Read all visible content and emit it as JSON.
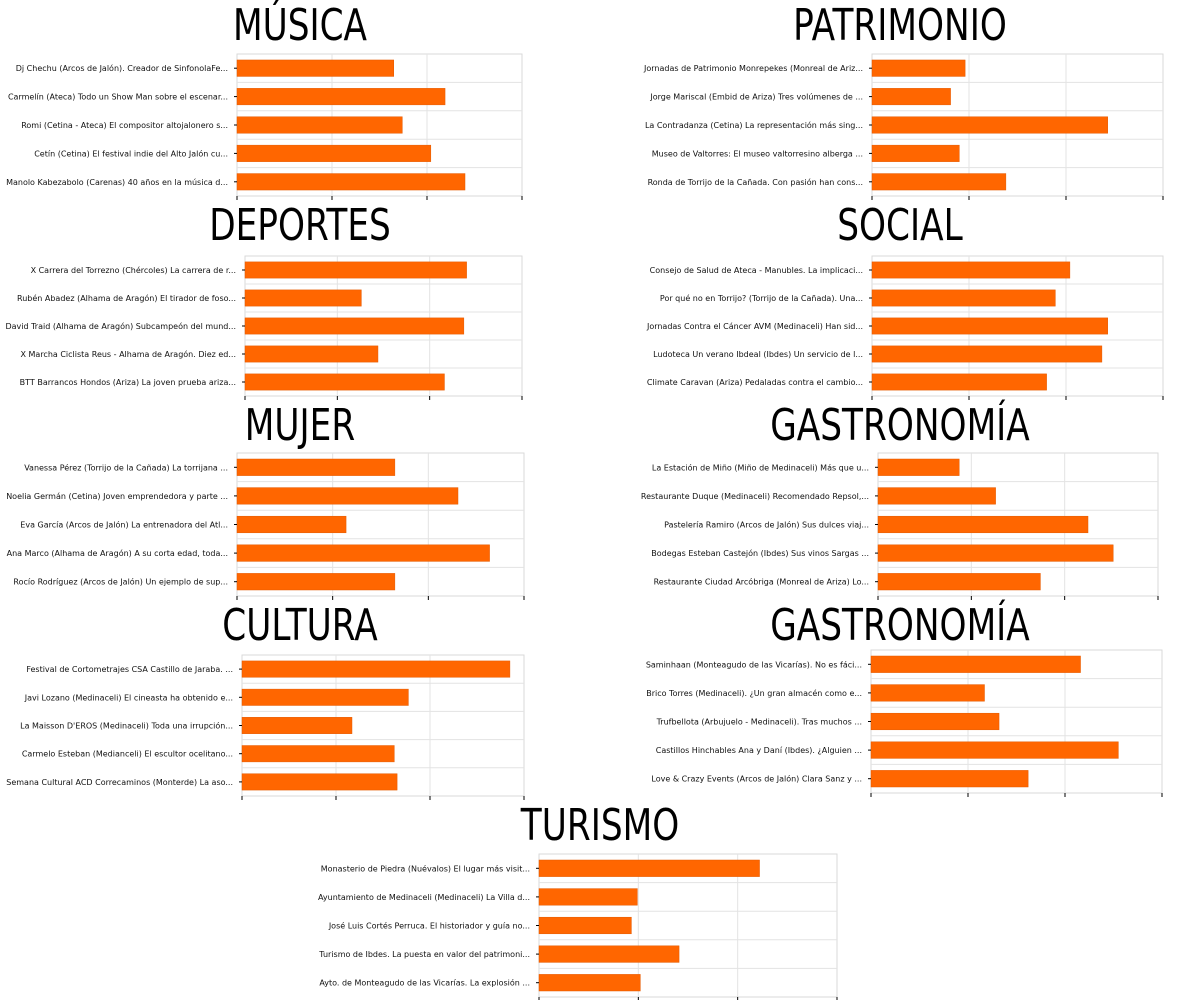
{
  "accent_color": "#ff6600",
  "chart_data": [
    {
      "type": "bar",
      "title": "MÚSICA",
      "categories": [
        "Dj Chechu (Arcos de Jalón). Creador de SinfonolaFe...",
        "Carmelín (Ateca) Todo un Show Man sobre el escenar...",
        "Romi (Cetina - Ateca) El compositor altojalonero s...",
        "Cetín (Cetina) El festival indie del Alto Jalón cu...",
        "Manolo Kabezabolo (Carenas) 40 años en la música d..."
      ],
      "values": [
        55,
        73,
        58,
        68,
        80
      ],
      "xlim": [
        0,
        100
      ]
    },
    {
      "type": "bar",
      "title": "PATRIMONIO",
      "categories": [
        "Jornadas de Patrimonio Monrepekes (Monreal de Ariz...",
        "Jorge Mariscal (Embid de Ariza) Tres volúmenes de ...",
        "La Contradanza (Cetina) La representación más sing...",
        "Museo de Valtorres: El museo valtorresino alberga ...",
        "Ronda de Torrijo de la Cañada. Con pasión han cons..."
      ],
      "values": [
        32,
        27,
        81,
        30,
        46
      ],
      "xlim": [
        0,
        100
      ]
    },
    {
      "type": "bar",
      "title": "DEPORTES",
      "categories": [
        "X Carrera del Torrezno (Chércoles) La carrera de r...",
        "Rubén Abadez (Alhama de Aragón) El tirador de foso...",
        "David Traid (Alhama de Aragón) Subcampeón del mund...",
        "X Marcha Ciclista Reus - Alhama de Aragón. Diez ed...",
        "BTT Barrancos Hondos (Ariza) La joven prueba ariza..."
      ],
      "values": [
        80,
        42,
        79,
        48,
        72
      ],
      "xlim": [
        0,
        100
      ]
    },
    {
      "type": "bar",
      "title": "SOCIAL",
      "categories": [
        "Consejo de Salud de Ateca - Manubles. La implicaci...",
        "Por qué no en Torrijo? (Torrijo de la Cañada). Una...",
        "Jornadas Contra el Cáncer AVM (Medinaceli) Han sid...",
        "Ludoteca Un verano Ibdeal (Ibdes) Un servicio de l...",
        "Climate Caravan (Ariza) Pedaladas contra el cambio..."
      ],
      "values": [
        68,
        63,
        81,
        79,
        60
      ],
      "xlim": [
        0,
        100
      ]
    },
    {
      "type": "bar",
      "title": "MUJER",
      "categories": [
        "Vanessa Pérez (Torrijo de la Cañada) La torrijana ...",
        "Noelia Germán (Cetina) Joven emprendedora y parte ...",
        "Eva García (Arcos de Jalón) La entrenadora del Atl...",
        "Ana Marco (Alhama de Aragón) A su corta edad, toda...",
        "Rocío Rodríguez (Arcos de Jalón) Un ejemplo de sup..."
      ],
      "values": [
        55,
        77,
        38,
        88,
        55
      ],
      "xlim": [
        0,
        100
      ]
    },
    {
      "type": "bar",
      "title": "GASTRONOMÍA",
      "categories": [
        "La Estación de Miño (Miño de Medinaceli) Más que u...",
        "Restaurante Duque (Medinaceli) Recomendado Repsol,...",
        "Pastelería Ramiro (Arcos de Jalón) Sus dulces viaj...",
        "Bodegas Esteban Castejón (Ibdes) Sus vinos Sargas ...",
        "Restaurante Ciudad Arcóbriga (Monreal de Ariza) Lo..."
      ],
      "values": [
        29,
        42,
        75,
        84,
        58
      ],
      "xlim": [
        0,
        100
      ]
    },
    {
      "type": "bar",
      "title": "CULTURA",
      "categories": [
        "Festival de Cortometrajes CSA Castillo de Jaraba. ...",
        "Javi Lozano (Medinaceli) El cineasta ha obtenido e...",
        "La Maisson D'EROS (Medinaceli) Toda una irrupción...",
        "Carmelo Esteban (Medianceli) El escultor ocelitano...",
        "Semana Cultural ACD Correcaminos (Monterde) La aso..."
      ],
      "values": [
        95,
        59,
        39,
        54,
        55
      ],
      "xlim": [
        0,
        100
      ]
    },
    {
      "type": "bar",
      "title": "GASTRONOMÍA",
      "categories": [
        "Saminhaan (Monteagudo de las Vicarías). No es fáci...",
        "Brico Torres (Medinaceli). ¿Un gran almacén como e...",
        "Trufbellota (Arbujuelo - Medinaceli). Tras muchos ...",
        "Castillos Hinchables Ana y Daní (Ibdes). ¿Alguien ...",
        "Love & Crazy Events (Arcos de Jalón) Clara Sanz y ..."
      ],
      "values": [
        72,
        39,
        44,
        85,
        54
      ],
      "xlim": [
        0,
        100
      ]
    },
    {
      "type": "bar",
      "title": "TURISMO",
      "categories": [
        "Monasterio de Piedra (Nuévalos) El lugar más visit...",
        "Ayuntamiento de Medinaceli (Medinaceli) La Villa d...",
        "José Luis Cortés Perruca. El historiador y guía no...",
        "Turismo de Ibdes. La puesta en valor del patrimoni...",
        "Ayto. de Monteagudo de las Vicarías. La explosión ..."
      ],
      "values": [
        74,
        33,
        31,
        47,
        34
      ],
      "xlim": [
        0,
        100
      ]
    }
  ]
}
